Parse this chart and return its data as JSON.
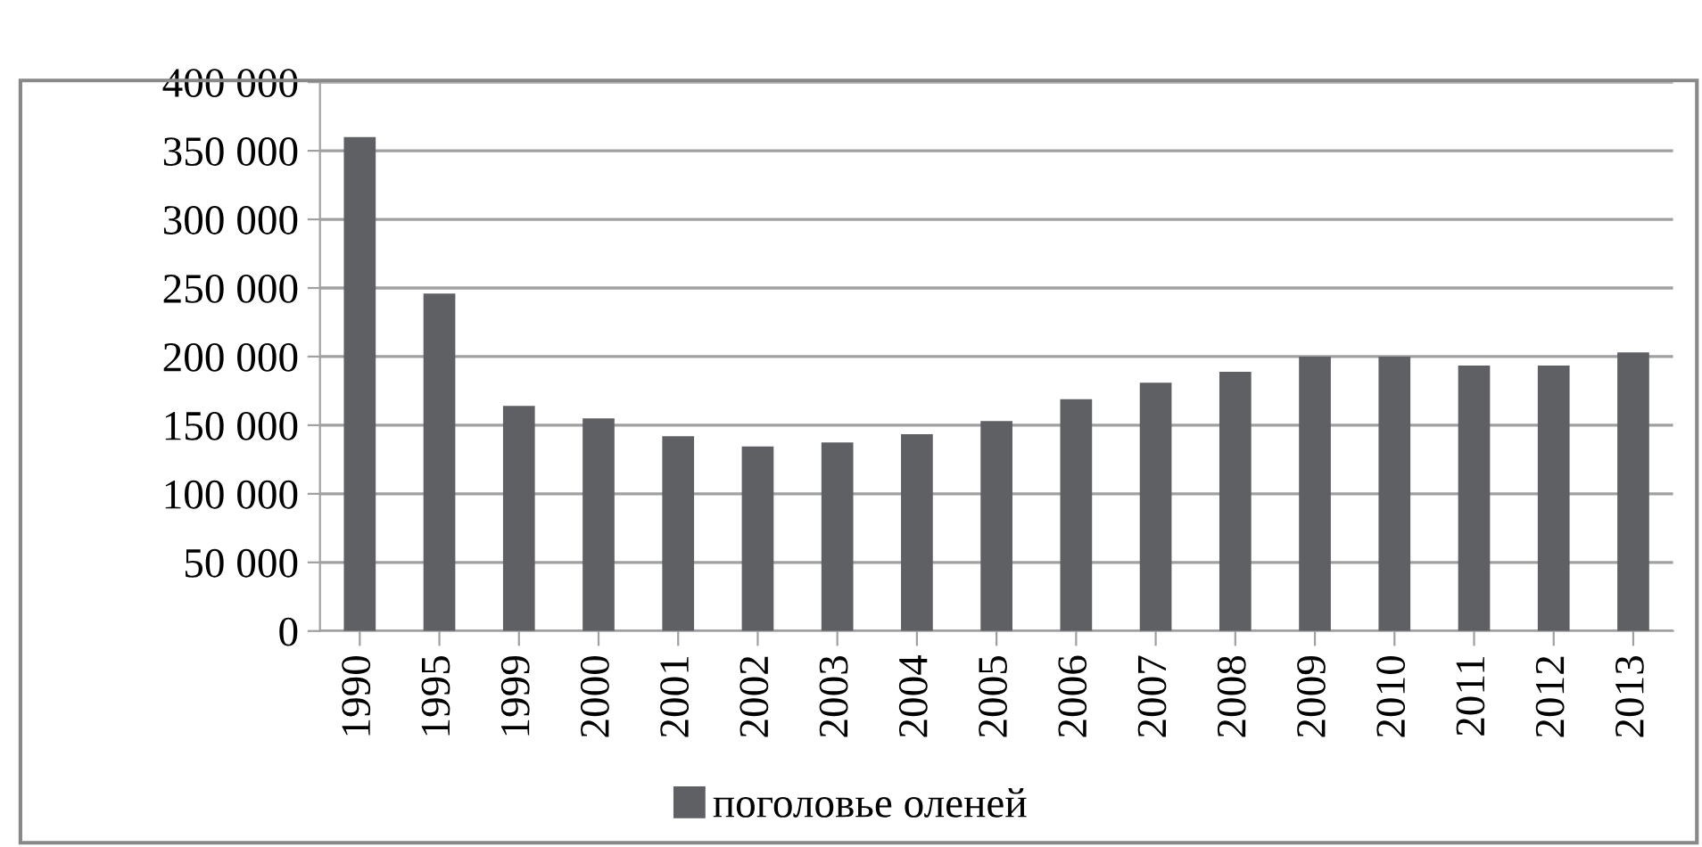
{
  "chart_data": {
    "type": "bar",
    "categories": [
      "1990",
      "1995",
      "1999",
      "2000",
      "2001",
      "2002",
      "2003",
      "2004",
      "2005",
      "2006",
      "2007",
      "2008",
      "2009",
      "2010",
      "2011",
      "2012",
      "2013"
    ],
    "series": [
      {
        "name": "поголовье оленей",
        "color": "#5f6064",
        "values": [
          360000,
          246000,
          164000,
          155000,
          142000,
          134500,
          137500,
          143500,
          153000,
          169000,
          181000,
          189000,
          200000,
          200000,
          193500,
          193500,
          203000
        ]
      }
    ],
    "ylim": [
      0,
      400000
    ],
    "yticks": [
      0,
      {
        "value": 50000,
        "label": "50 000"
      },
      {
        "value": 100000,
        "label": "100 000"
      },
      {
        "value": 150000,
        "label": "150 000"
      },
      {
        "value": 200000,
        "label": "200 000"
      },
      {
        "value": 250000,
        "label": "250 000"
      },
      {
        "value": 300000,
        "label": "300 000"
      },
      {
        "value": 350000,
        "label": "350 000"
      },
      {
        "value": 400000,
        "label": "400 000"
      }
    ],
    "grid": "y",
    "legend": "bottom"
  }
}
